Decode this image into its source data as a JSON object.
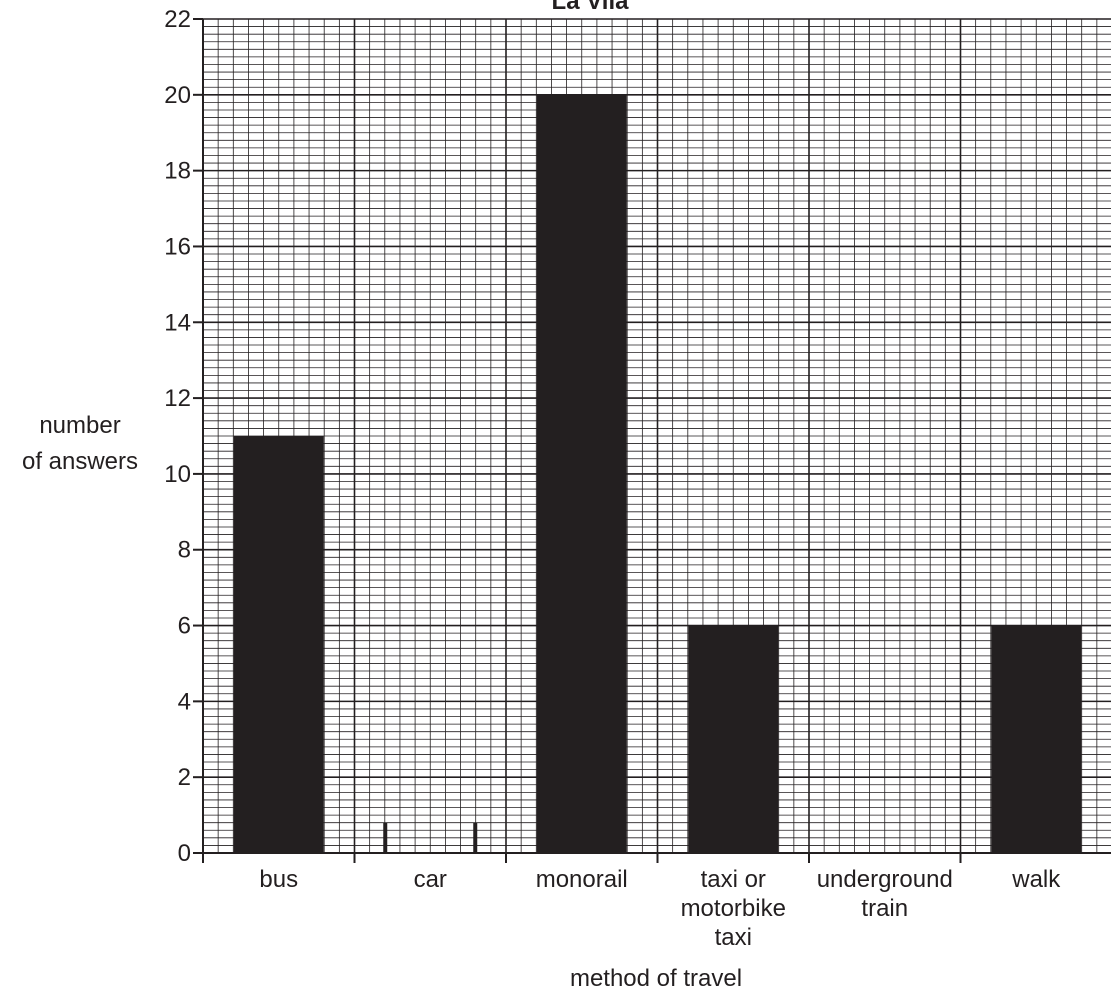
{
  "chart_data": {
    "type": "bar",
    "title": "La Vila",
    "xlabel": "method of travel",
    "ylabel": [
      "number",
      "of answers"
    ],
    "categories": [
      [
        "bus"
      ],
      [
        "car"
      ],
      [
        "monorail"
      ],
      [
        "taxi or",
        "motorbike",
        "taxi"
      ],
      [
        "underground",
        "train"
      ],
      [
        "walk"
      ]
    ],
    "values": [
      11,
      0.8,
      20,
      6,
      0,
      6
    ],
    "ylim": [
      0,
      22
    ],
    "yticks": [
      "0",
      "2",
      "4",
      "6",
      "8",
      "10",
      "12",
      "14",
      "16",
      "18",
      "20",
      "22"
    ],
    "grid": true,
    "colors": {
      "bar": "#231f20",
      "grid_minor": "#231f20",
      "grid_major": "#231f20"
    }
  }
}
